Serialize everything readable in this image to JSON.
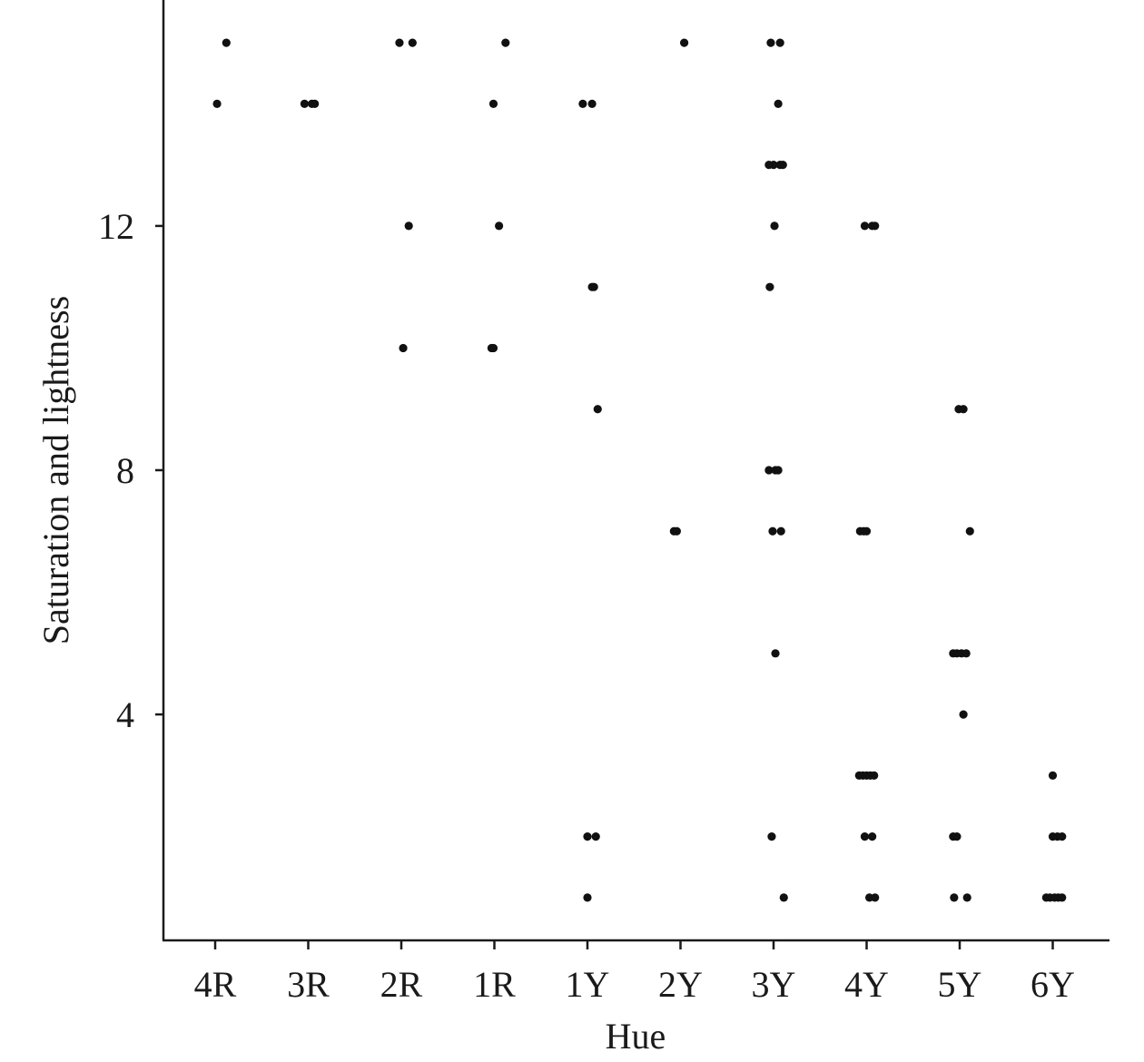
{
  "chart_data": {
    "type": "scatter",
    "title": "",
    "xlabel": "Hue",
    "ylabel": "Saturation and lightness",
    "categories": [
      "4R",
      "3R",
      "2R",
      "1R",
      "1Y",
      "2Y",
      "3Y",
      "4Y",
      "5Y",
      "6Y"
    ],
    "yticks": [
      4,
      8,
      12
    ],
    "ylim": [
      0.3,
      15.7
    ],
    "grid": false,
    "legend": "none",
    "point_color": "#111111",
    "points": [
      {
        "x": "4R",
        "offset": 0.12,
        "y": 15
      },
      {
        "x": "4R",
        "offset": 0.02,
        "y": 14
      },
      {
        "x": "3R",
        "offset": -0.04,
        "y": 14
      },
      {
        "x": "3R",
        "offset": 0.04,
        "y": 14
      },
      {
        "x": "3R",
        "offset": 0.07,
        "y": 14
      },
      {
        "x": "2R",
        "offset": -0.02,
        "y": 15
      },
      {
        "x": "2R",
        "offset": 0.12,
        "y": 15
      },
      {
        "x": "2R",
        "offset": 0.08,
        "y": 12
      },
      {
        "x": "2R",
        "offset": 0.02,
        "y": 10
      },
      {
        "x": "1R",
        "offset": 0.12,
        "y": 15
      },
      {
        "x": "1R",
        "offset": -0.01,
        "y": 14
      },
      {
        "x": "1R",
        "offset": 0.05,
        "y": 12
      },
      {
        "x": "1R",
        "offset": -0.03,
        "y": 10
      },
      {
        "x": "1R",
        "offset": -0.01,
        "y": 10
      },
      {
        "x": "1Y",
        "offset": -0.05,
        "y": 14
      },
      {
        "x": "1Y",
        "offset": 0.05,
        "y": 14
      },
      {
        "x": "1Y",
        "offset": 0.05,
        "y": 11
      },
      {
        "x": "1Y",
        "offset": 0.07,
        "y": 11
      },
      {
        "x": "1Y",
        "offset": 0.11,
        "y": 9
      },
      {
        "x": "1Y",
        "offset": 0.0,
        "y": 2
      },
      {
        "x": "1Y",
        "offset": 0.09,
        "y": 2
      },
      {
        "x": "1Y",
        "offset": 0.0,
        "y": 1
      },
      {
        "x": "2Y",
        "offset": 0.04,
        "y": 15
      },
      {
        "x": "2Y",
        "offset": -0.07,
        "y": 7
      },
      {
        "x": "2Y",
        "offset": -0.04,
        "y": 7
      },
      {
        "x": "3Y",
        "offset": -0.03,
        "y": 15
      },
      {
        "x": "3Y",
        "offset": 0.07,
        "y": 15
      },
      {
        "x": "3Y",
        "offset": 0.05,
        "y": 14
      },
      {
        "x": "3Y",
        "offset": -0.05,
        "y": 13
      },
      {
        "x": "3Y",
        "offset": 0.0,
        "y": 13
      },
      {
        "x": "3Y",
        "offset": 0.07,
        "y": 13
      },
      {
        "x": "3Y",
        "offset": 0.1,
        "y": 13
      },
      {
        "x": "3Y",
        "offset": 0.01,
        "y": 12
      },
      {
        "x": "3Y",
        "offset": -0.04,
        "y": 11
      },
      {
        "x": "3Y",
        "offset": -0.05,
        "y": 8
      },
      {
        "x": "3Y",
        "offset": 0.02,
        "y": 8
      },
      {
        "x": "3Y",
        "offset": 0.05,
        "y": 8
      },
      {
        "x": "3Y",
        "offset": -0.01,
        "y": 7
      },
      {
        "x": "3Y",
        "offset": 0.08,
        "y": 7
      },
      {
        "x": "3Y",
        "offset": 0.02,
        "y": 5
      },
      {
        "x": "3Y",
        "offset": -0.02,
        "y": 2
      },
      {
        "x": "3Y",
        "offset": 0.11,
        "y": 1
      },
      {
        "x": "4Y",
        "offset": -0.02,
        "y": 12
      },
      {
        "x": "4Y",
        "offset": 0.06,
        "y": 12
      },
      {
        "x": "4Y",
        "offset": 0.09,
        "y": 12
      },
      {
        "x": "4Y",
        "offset": -0.07,
        "y": 7
      },
      {
        "x": "4Y",
        "offset": -0.03,
        "y": 7
      },
      {
        "x": "4Y",
        "offset": 0.0,
        "y": 7
      },
      {
        "x": "4Y",
        "offset": -0.08,
        "y": 3
      },
      {
        "x": "4Y",
        "offset": -0.04,
        "y": 3
      },
      {
        "x": "4Y",
        "offset": 0.0,
        "y": 3
      },
      {
        "x": "4Y",
        "offset": 0.04,
        "y": 3
      },
      {
        "x": "4Y",
        "offset": 0.08,
        "y": 3
      },
      {
        "x": "4Y",
        "offset": -0.02,
        "y": 2
      },
      {
        "x": "4Y",
        "offset": 0.06,
        "y": 2
      },
      {
        "x": "4Y",
        "offset": 0.03,
        "y": 1
      },
      {
        "x": "4Y",
        "offset": 0.09,
        "y": 1
      },
      {
        "x": "5Y",
        "offset": -0.01,
        "y": 9
      },
      {
        "x": "5Y",
        "offset": 0.04,
        "y": 9
      },
      {
        "x": "5Y",
        "offset": 0.11,
        "y": 7
      },
      {
        "x": "5Y",
        "offset": -0.07,
        "y": 5
      },
      {
        "x": "5Y",
        "offset": -0.03,
        "y": 5
      },
      {
        "x": "5Y",
        "offset": 0.02,
        "y": 5
      },
      {
        "x": "5Y",
        "offset": 0.07,
        "y": 5
      },
      {
        "x": "5Y",
        "offset": 0.04,
        "y": 4
      },
      {
        "x": "5Y",
        "offset": -0.07,
        "y": 2
      },
      {
        "x": "5Y",
        "offset": -0.03,
        "y": 2
      },
      {
        "x": "5Y",
        "offset": -0.06,
        "y": 1
      },
      {
        "x": "5Y",
        "offset": 0.08,
        "y": 1
      },
      {
        "x": "6Y",
        "offset": 0.0,
        "y": 3
      },
      {
        "x": "6Y",
        "offset": 0.0,
        "y": 2
      },
      {
        "x": "6Y",
        "offset": 0.05,
        "y": 2
      },
      {
        "x": "6Y",
        "offset": 0.1,
        "y": 2
      },
      {
        "x": "6Y",
        "offset": -0.07,
        "y": 1
      },
      {
        "x": "6Y",
        "offset": -0.03,
        "y": 1
      },
      {
        "x": "6Y",
        "offset": 0.02,
        "y": 1
      },
      {
        "x": "6Y",
        "offset": 0.06,
        "y": 1
      },
      {
        "x": "6Y",
        "offset": 0.1,
        "y": 1
      }
    ]
  }
}
